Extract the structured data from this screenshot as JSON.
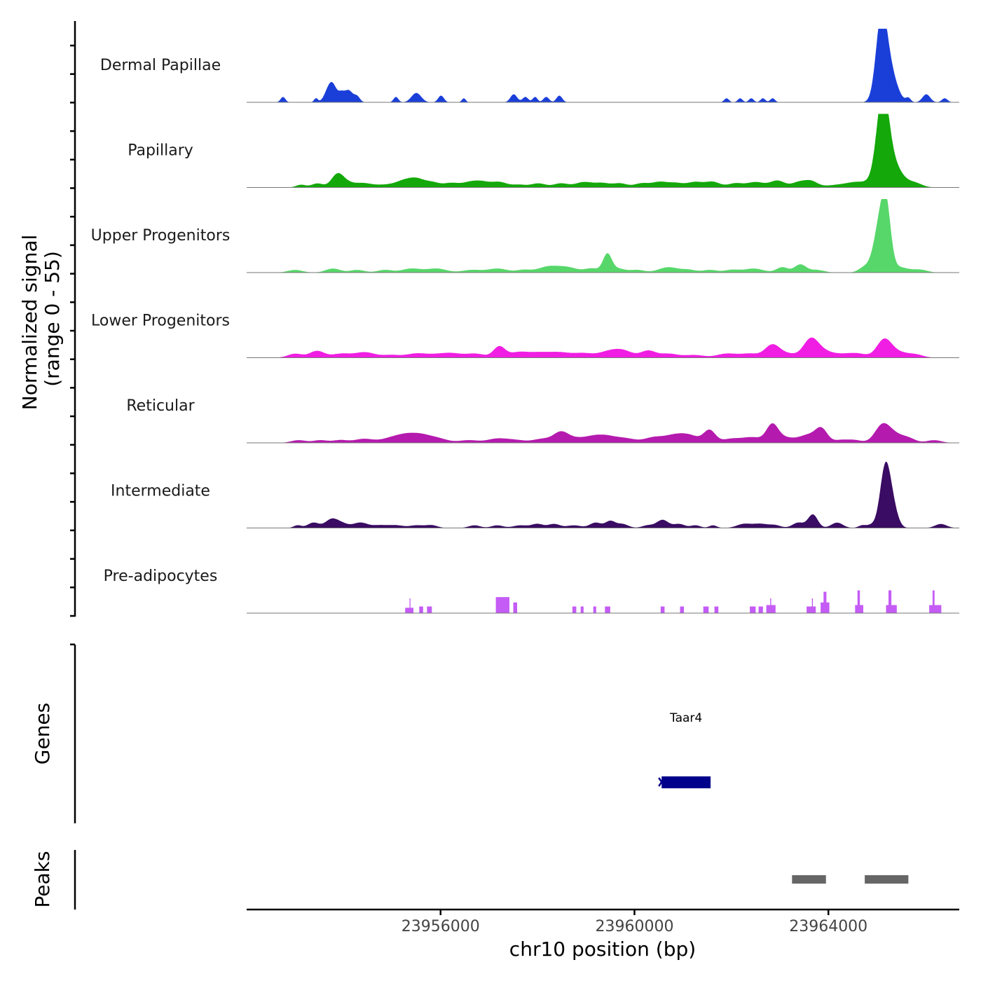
{
  "chart_data": {
    "type": "area",
    "title": "",
    "ylabel_line1": "Normalized signal",
    "ylabel_line2": "(range 0 - 55)",
    "ylim": [
      0,
      55
    ],
    "xlabel": "chr10 position (bp)",
    "xlim": [
      23952000,
      23966700
    ],
    "xticks": [
      23956000,
      23960000,
      23964000
    ],
    "xtick_labels": [
      "23956000",
      "23960000",
      "23964000"
    ],
    "genes_label": "Genes",
    "peaks_label": "Peaks",
    "series": [
      {
        "name": "Dermal Papillae",
        "color": "#1a3fd9",
        "peaks": [
          [
            23952750,
            4,
            50
          ],
          [
            23953430,
            3,
            40
          ],
          [
            23953700,
            10,
            90
          ],
          [
            23953800,
            8,
            80
          ],
          [
            23953950,
            5,
            60
          ],
          [
            23954100,
            9,
            90
          ],
          [
            23954280,
            4,
            60
          ],
          [
            23955080,
            4,
            50
          ],
          [
            23955500,
            7,
            100
          ],
          [
            23956010,
            5,
            60
          ],
          [
            23956480,
            3,
            40
          ],
          [
            23957510,
            6,
            70
          ],
          [
            23957750,
            4,
            60
          ],
          [
            23957950,
            4,
            50
          ],
          [
            23958180,
            4,
            60
          ],
          [
            23958450,
            5,
            60
          ],
          [
            23961900,
            3,
            50
          ],
          [
            23962180,
            3,
            50
          ],
          [
            23962410,
            3,
            50
          ],
          [
            23962650,
            3,
            50
          ],
          [
            23962850,
            3,
            50
          ],
          [
            23965090,
            55,
            110
          ],
          [
            23965250,
            25,
            150
          ],
          [
            23965650,
            3,
            50
          ],
          [
            23966020,
            6,
            80
          ],
          [
            23966400,
            3,
            60
          ]
        ]
      },
      {
        "name": "Papillary",
        "color": "#14a80a",
        "peaks": [
          [
            23953120,
            2,
            100
          ],
          [
            23953460,
            3,
            120
          ],
          [
            23953860,
            8,
            120
          ],
          [
            23954010,
            4,
            150
          ],
          [
            23954380,
            3,
            180
          ],
          [
            23954880,
            2,
            250
          ],
          [
            23955290,
            5,
            180
          ],
          [
            23955520,
            4,
            140
          ],
          [
            23955810,
            4,
            170
          ],
          [
            23956220,
            3,
            150
          ],
          [
            23956620,
            4,
            180
          ],
          [
            23956880,
            3,
            150
          ],
          [
            23957210,
            4,
            160
          ],
          [
            23957620,
            2,
            150
          ],
          [
            23958020,
            3,
            150
          ],
          [
            23958480,
            3,
            150
          ],
          [
            23958960,
            4,
            180
          ],
          [
            23959340,
            3,
            150
          ],
          [
            23959700,
            3,
            150
          ],
          [
            23960150,
            3,
            150
          ],
          [
            23960520,
            4,
            160
          ],
          [
            23960850,
            3,
            150
          ],
          [
            23961250,
            4,
            170
          ],
          [
            23961620,
            4,
            150
          ],
          [
            23962080,
            3,
            150
          ],
          [
            23962500,
            4,
            180
          ],
          [
            23962950,
            5,
            150
          ],
          [
            23963400,
            4,
            150
          ],
          [
            23963650,
            4,
            130
          ],
          [
            23964250,
            2,
            300
          ],
          [
            23964620,
            3,
            200
          ],
          [
            23965120,
            55,
            120
          ],
          [
            23965250,
            22,
            220
          ],
          [
            23965790,
            3,
            150
          ]
        ]
      },
      {
        "name": "Upper Progenitors",
        "color": "#57d76a",
        "peaks": [
          [
            23953000,
            2,
            150
          ],
          [
            23953780,
            3,
            150
          ],
          [
            23954280,
            2,
            150
          ],
          [
            23954850,
            2,
            150
          ],
          [
            23955400,
            3,
            200
          ],
          [
            23955920,
            3,
            200
          ],
          [
            23956650,
            2,
            200
          ],
          [
            23957180,
            3,
            200
          ],
          [
            23957720,
            2,
            150
          ],
          [
            23958200,
            4,
            200
          ],
          [
            23958600,
            4,
            220
          ],
          [
            23959130,
            3,
            150
          ],
          [
            23959440,
            13,
            90
          ],
          [
            23959650,
            3,
            150
          ],
          [
            23960050,
            2,
            150
          ],
          [
            23960700,
            4,
            200
          ],
          [
            23961120,
            2,
            150
          ],
          [
            23961560,
            2,
            150
          ],
          [
            23962010,
            2,
            150
          ],
          [
            23962460,
            3,
            200
          ],
          [
            23963050,
            4,
            120
          ],
          [
            23963420,
            6,
            120
          ],
          [
            23963760,
            2,
            150
          ],
          [
            23964750,
            4,
            120
          ],
          [
            23965080,
            40,
            130
          ],
          [
            23965200,
            30,
            90
          ],
          [
            23965450,
            4,
            200
          ],
          [
            23965900,
            2,
            150
          ]
        ]
      },
      {
        "name": "Lower Progenitors",
        "color": "#f01ee3",
        "peaks": [
          [
            23953000,
            3,
            150
          ],
          [
            23953450,
            5,
            150
          ],
          [
            23953950,
            3,
            200
          ],
          [
            23954440,
            4,
            200
          ],
          [
            23954980,
            2,
            200
          ],
          [
            23955500,
            3,
            200
          ],
          [
            23955900,
            2,
            200
          ],
          [
            23956240,
            3,
            200
          ],
          [
            23956720,
            3,
            200
          ],
          [
            23957210,
            8,
            120
          ],
          [
            23957600,
            4,
            200
          ],
          [
            23958000,
            3,
            200
          ],
          [
            23958440,
            4,
            250
          ],
          [
            23958960,
            3,
            200
          ],
          [
            23959450,
            4,
            200
          ],
          [
            23959770,
            5,
            200
          ],
          [
            23960280,
            5,
            150
          ],
          [
            23960700,
            3,
            200
          ],
          [
            23961240,
            2,
            200
          ],
          [
            23961900,
            3,
            200
          ],
          [
            23962380,
            3,
            200
          ],
          [
            23962840,
            9,
            150
          ],
          [
            23963150,
            3,
            200
          ],
          [
            23963630,
            12,
            150
          ],
          [
            23963850,
            5,
            200
          ],
          [
            23964250,
            2,
            200
          ],
          [
            23964600,
            3,
            200
          ],
          [
            23965150,
            13,
            150
          ],
          [
            23965450,
            4,
            200
          ],
          [
            23965820,
            2,
            150
          ]
        ]
      },
      {
        "name": "Reticular",
        "color": "#b51aae",
        "peaks": [
          [
            23953070,
            2,
            150
          ],
          [
            23953520,
            2,
            150
          ],
          [
            23953930,
            2,
            150
          ],
          [
            23954420,
            3,
            200
          ],
          [
            23954960,
            3,
            200
          ],
          [
            23955280,
            5,
            200
          ],
          [
            23955600,
            5,
            200
          ],
          [
            23955950,
            3,
            200
          ],
          [
            23956580,
            2,
            200
          ],
          [
            23957160,
            3,
            200
          ],
          [
            23957540,
            2,
            200
          ],
          [
            23958110,
            3,
            200
          ],
          [
            23958480,
            7,
            150
          ],
          [
            23958760,
            3,
            200
          ],
          [
            23959150,
            4,
            200
          ],
          [
            23959450,
            4,
            200
          ],
          [
            23959830,
            3,
            200
          ],
          [
            23960400,
            4,
            200
          ],
          [
            23960820,
            5,
            200
          ],
          [
            23961150,
            5,
            200
          ],
          [
            23961550,
            9,
            120
          ],
          [
            23962000,
            3,
            200
          ],
          [
            23962440,
            4,
            200
          ],
          [
            23962840,
            12,
            120
          ],
          [
            23963070,
            4,
            200
          ],
          [
            23963600,
            6,
            200
          ],
          [
            23963860,
            9,
            120
          ],
          [
            23964250,
            2,
            150
          ],
          [
            23964540,
            2,
            150
          ],
          [
            23965100,
            10,
            150
          ],
          [
            23965300,
            7,
            200
          ],
          [
            23965650,
            3,
            150
          ],
          [
            23966180,
            2,
            150
          ]
        ]
      },
      {
        "name": "Intermediate",
        "color": "#3a0c63",
        "peaks": [
          [
            23953050,
            2,
            80
          ],
          [
            23953380,
            4,
            120
          ],
          [
            23953730,
            5,
            120
          ],
          [
            23953920,
            4,
            150
          ],
          [
            23954350,
            4,
            150
          ],
          [
            23954750,
            2,
            150
          ],
          [
            23955080,
            2,
            150
          ],
          [
            23955510,
            2,
            150
          ],
          [
            23955820,
            2,
            120
          ],
          [
            23956700,
            2,
            120
          ],
          [
            23957170,
            2,
            120
          ],
          [
            23957650,
            2,
            150
          ],
          [
            23958000,
            3,
            120
          ],
          [
            23958340,
            3,
            120
          ],
          [
            23958750,
            2,
            150
          ],
          [
            23959200,
            4,
            120
          ],
          [
            23959500,
            5,
            100
          ],
          [
            23959750,
            3,
            120
          ],
          [
            23960280,
            2,
            120
          ],
          [
            23960580,
            6,
            120
          ],
          [
            23960920,
            3,
            120
          ],
          [
            23961260,
            2,
            100
          ],
          [
            23961620,
            2,
            80
          ],
          [
            23962260,
            3,
            150
          ],
          [
            23962600,
            3,
            150
          ],
          [
            23962900,
            2,
            120
          ],
          [
            23963380,
            4,
            120
          ],
          [
            23963680,
            10,
            100
          ],
          [
            23964180,
            4,
            120
          ],
          [
            23964700,
            2,
            80
          ],
          [
            23964880,
            2,
            80
          ],
          [
            23965180,
            47,
            110
          ],
          [
            23965350,
            10,
            100
          ],
          [
            23966320,
            3,
            120
          ]
        ]
      },
      {
        "name": "Pre-adipocytes",
        "color": "#c45cf5",
        "blocks": [
          [
            23955270,
            23955440,
            4
          ],
          [
            23955360,
            23955380,
            11
          ],
          [
            23955560,
            23955640,
            5
          ],
          [
            23955720,
            23955820,
            5
          ],
          [
            23957140,
            23957420,
            12
          ],
          [
            23957500,
            23957580,
            8
          ],
          [
            23958720,
            23958800,
            5
          ],
          [
            23958890,
            23958950,
            5
          ],
          [
            23959150,
            23959210,
            5
          ],
          [
            23959390,
            23959500,
            5
          ],
          [
            23960540,
            23960620,
            5
          ],
          [
            23960940,
            23961020,
            5
          ],
          [
            23961420,
            23961530,
            5
          ],
          [
            23961650,
            23961730,
            5
          ],
          [
            23962380,
            23962500,
            5
          ],
          [
            23962560,
            23962650,
            5
          ],
          [
            23962720,
            23962910,
            6
          ],
          [
            23962800,
            23962820,
            11
          ],
          [
            23963550,
            23963740,
            5
          ],
          [
            23963660,
            23963680,
            11
          ],
          [
            23963840,
            23964020,
            8
          ],
          [
            23963900,
            23963960,
            16
          ],
          [
            23964550,
            23964720,
            6
          ],
          [
            23964600,
            23964650,
            17
          ],
          [
            23965190,
            23965410,
            6
          ],
          [
            23965240,
            23965300,
            17
          ],
          [
            23966080,
            23966330,
            6
          ],
          [
            23966150,
            23966190,
            17
          ]
        ]
      }
    ],
    "genes": [
      {
        "name": "Taar4",
        "start": 23960560,
        "end": 23961570,
        "strand": "-",
        "color": "#00008b"
      }
    ],
    "peak_regions": [
      {
        "start": 23963250,
        "end": 23963950,
        "color": "#666666"
      },
      {
        "start": 23964750,
        "end": 23965650,
        "color": "#666666"
      }
    ]
  }
}
